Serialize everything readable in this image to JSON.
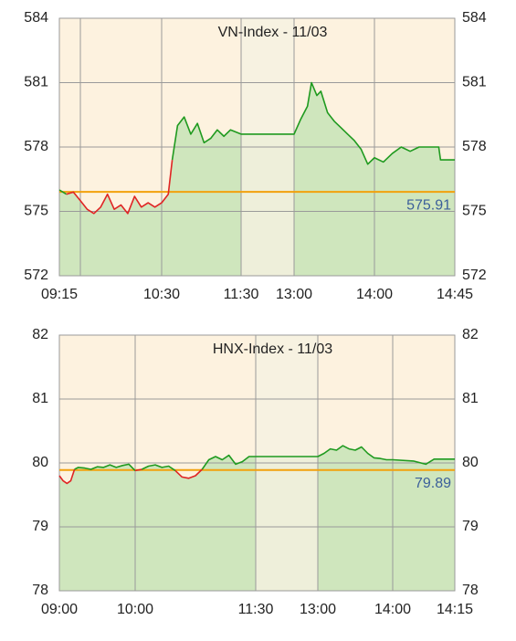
{
  "chart_data": [
    {
      "type": "line",
      "title": "VN-Index - 11/03",
      "x": [
        555,
        560,
        565,
        570,
        575,
        580,
        585,
        590,
        595,
        600,
        605,
        610,
        615,
        620,
        625,
        630,
        635,
        638,
        642,
        647,
        652,
        657,
        662,
        667,
        672,
        677,
        682,
        690,
        780,
        785,
        790,
        793,
        797,
        800,
        805,
        810,
        815,
        820,
        825,
        830,
        835,
        840,
        845,
        850,
        855,
        860,
        865,
        870,
        876,
        877,
        885
      ],
      "values": [
        576.0,
        575.8,
        575.9,
        575.5,
        575.1,
        574.9,
        575.2,
        575.8,
        575.1,
        575.3,
        574.9,
        575.7,
        575.2,
        575.4,
        575.2,
        575.4,
        575.8,
        577.4,
        579.0,
        579.4,
        578.6,
        579.1,
        578.2,
        578.4,
        578.8,
        578.5,
        578.8,
        578.6,
        578.6,
        579.3,
        579.9,
        581.0,
        580.4,
        580.6,
        579.6,
        579.2,
        578.9,
        578.6,
        578.3,
        577.9,
        577.2,
        577.5,
        577.3,
        577.7,
        578.0,
        577.8,
        578.0,
        578.0,
        578.0,
        577.4,
        577.4
      ],
      "xlim": [
        555,
        885
      ],
      "xticks": [
        {
          "value": 555,
          "label": "09:15"
        },
        {
          "value": 570,
          "label": null
        },
        {
          "value": 630,
          "label": "10:30"
        },
        {
          "value": 690,
          "label": "11:30"
        },
        {
          "value": 780,
          "label": "13:00"
        },
        {
          "value": 840,
          "label": "14:00"
        },
        {
          "value": 885,
          "label": "14:45"
        }
      ],
      "ylim": [
        572,
        584
      ],
      "yticks": [
        572,
        575,
        578,
        581,
        584
      ],
      "reference": 575.91,
      "break": [
        690,
        780
      ],
      "color_above": "#1f9a1f",
      "color_below": "#e02424",
      "fill_color": "#cfe6bd",
      "reference_color": "#f2a10c",
      "background": "#fdf2df",
      "break_color": "#f5f1e1",
      "grid": true
    },
    {
      "type": "line",
      "title": "HNX-Index - 11/03",
      "x": [
        540,
        543,
        546,
        549,
        552,
        555,
        560,
        565,
        570,
        575,
        580,
        585,
        590,
        595,
        600,
        605,
        610,
        615,
        620,
        625,
        630,
        635,
        640,
        645,
        650,
        655,
        660,
        665,
        670,
        675,
        680,
        685,
        690,
        780,
        785,
        790,
        795,
        800,
        805,
        810,
        815,
        820,
        825,
        830,
        835,
        840,
        845,
        848,
        850,
        855
      ],
      "values": [
        79.8,
        79.72,
        79.68,
        79.72,
        79.9,
        79.93,
        79.92,
        79.9,
        79.94,
        79.93,
        79.97,
        79.93,
        79.96,
        79.98,
        79.88,
        79.9,
        79.95,
        79.97,
        79.93,
        79.95,
        79.88,
        79.78,
        79.76,
        79.8,
        79.9,
        80.05,
        80.1,
        80.05,
        80.12,
        79.98,
        80.02,
        80.1,
        80.1,
        80.1,
        80.15,
        80.22,
        80.2,
        80.27,
        80.22,
        80.2,
        80.25,
        80.15,
        80.08,
        80.07,
        80.05,
        80.05,
        80.03,
        79.98,
        80.06,
        80.06
      ],
      "xlim": [
        540,
        855
      ],
      "xticks": [
        {
          "value": 540,
          "label": "09:00"
        },
        {
          "value": 600,
          "label": "10:00"
        },
        {
          "value": 690,
          "label": "11:30"
        },
        {
          "value": 780,
          "label": "13:00"
        },
        {
          "value": 840,
          "label": "14:00"
        },
        {
          "value": 855,
          "label": "14:15"
        }
      ],
      "ylim": [
        78,
        82
      ],
      "yticks": [
        78,
        79,
        80,
        81,
        82
      ],
      "reference": 79.89,
      "break": [
        690,
        780
      ],
      "color_above": "#1f9a1f",
      "color_below": "#e02424",
      "fill_color": "#cfe6bd",
      "reference_color": "#f2a10c",
      "background": "#fdf2df",
      "break_color": "#f5f1e1",
      "grid": true
    }
  ]
}
